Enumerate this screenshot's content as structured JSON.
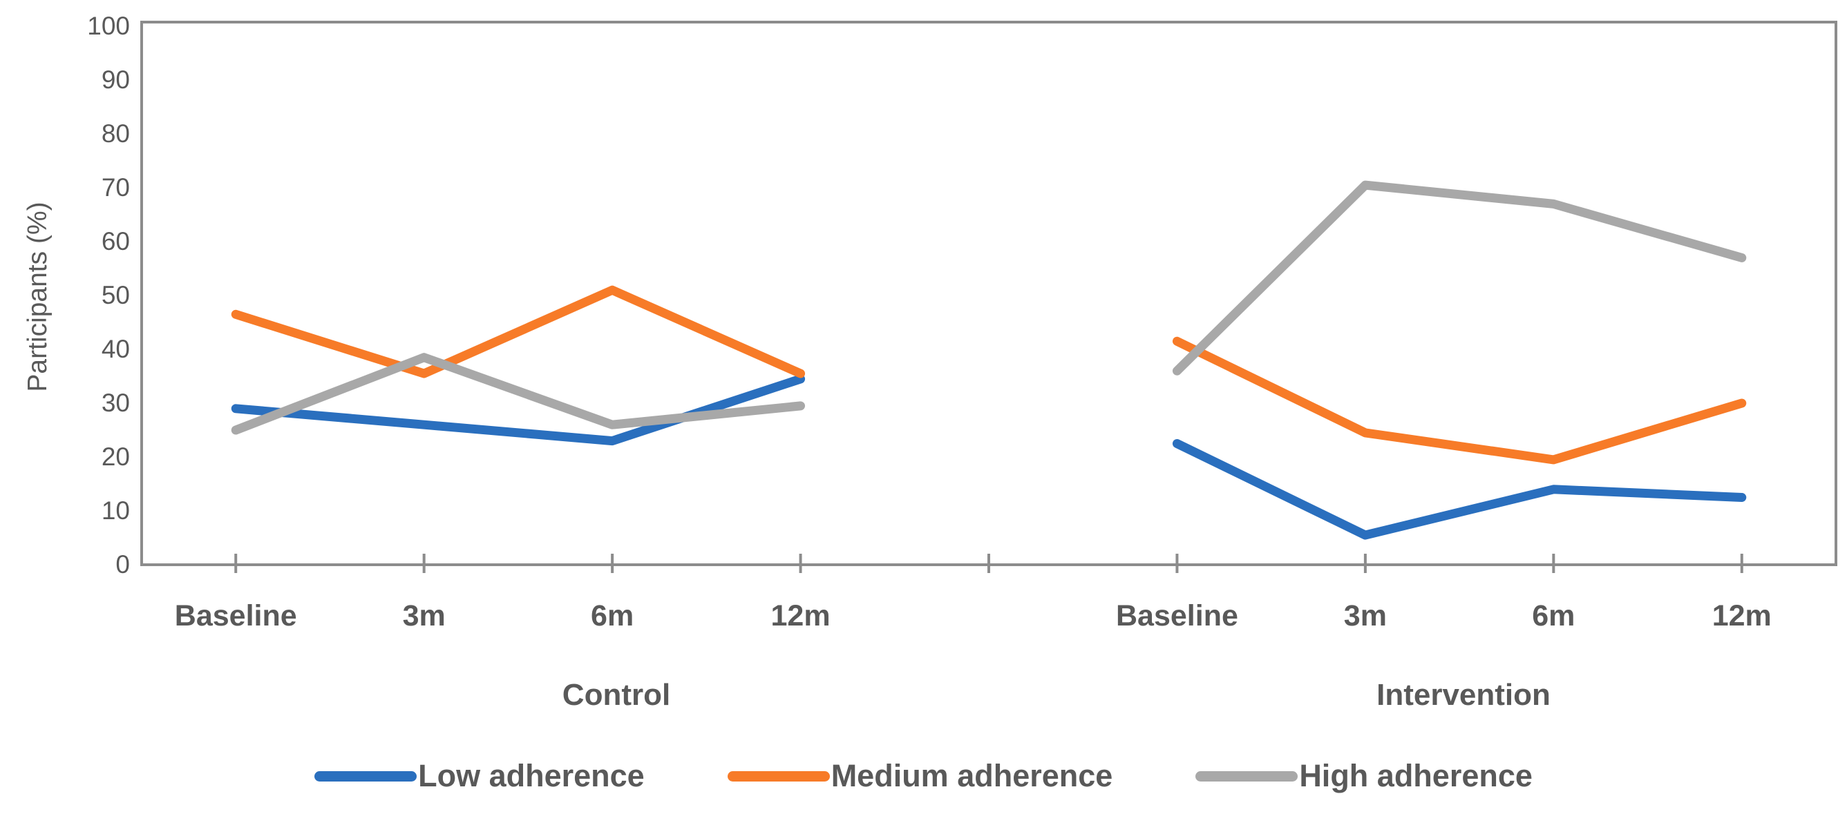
{
  "chart_data": {
    "type": "line",
    "title": "",
    "ylabel": "Participants (%)",
    "xlabel": "",
    "ylim": [
      0,
      100
    ],
    "ytick_step": 10,
    "grid": false,
    "legend_position": "bottom",
    "axis_color": "#8C8C8C",
    "text_color": "#595959",
    "groups": [
      {
        "label": "Control",
        "categories": [
          "Baseline",
          "3m",
          "6m",
          "12m"
        ]
      },
      {
        "label": "Intervention",
        "categories": [
          "Baseline",
          "3m",
          "6m",
          "12m"
        ]
      }
    ],
    "series": [
      {
        "name": "Low adherence",
        "color": "#2A6FBE",
        "groups": [
          [
            29,
            26,
            23,
            34.5
          ],
          [
            22.5,
            5.5,
            14,
            12.5
          ]
        ]
      },
      {
        "name": "Medium adherence",
        "color": "#F77B28",
        "groups": [
          [
            46.5,
            35.5,
            51,
            35.5
          ],
          [
            41.5,
            24.5,
            19.5,
            30
          ]
        ]
      },
      {
        "name": "High adherence",
        "color": "#A8A8A8",
        "groups": [
          [
            25,
            38.5,
            26,
            29.5
          ],
          [
            36,
            70.5,
            67,
            57
          ]
        ]
      }
    ]
  }
}
